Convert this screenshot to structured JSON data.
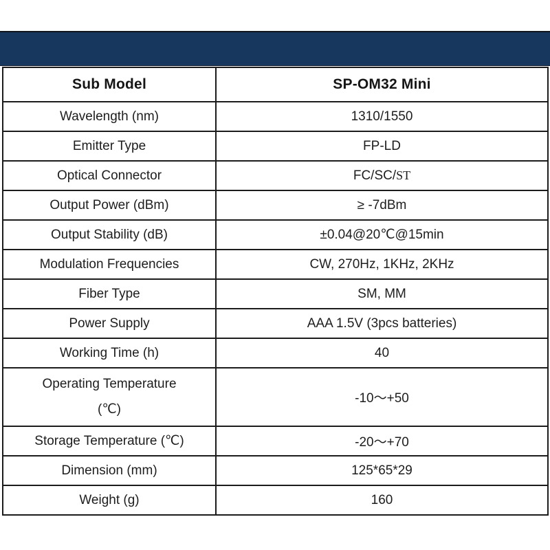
{
  "banner": {
    "color": "#17375e"
  },
  "table": {
    "border_color": "#1b1b1b",
    "header": {
      "label": "Sub Model",
      "value": "SP-OM32 Mini"
    },
    "rows": [
      {
        "label": "Wavelength (nm)",
        "value": "1310/1550"
      },
      {
        "label": "Emitter Type",
        "value": "FP-LD"
      },
      {
        "label": "Optical Connector",
        "value": "FC/SC/",
        "value_serif": "ST"
      },
      {
        "label": "Output Power (dBm)",
        "value": "≥ -7dBm"
      },
      {
        "label": "Output Stability (dB)",
        "value": "±0.04@20℃@15min"
      },
      {
        "label": "Modulation Frequencies",
        "value": "CW, 270Hz, 1KHz, 2KHz"
      },
      {
        "label": "Fiber Type",
        "value": "SM, MM"
      },
      {
        "label": "Power Supply",
        "value": "AAA 1.5V (3pcs batteries)"
      },
      {
        "label": "Working Time (h)",
        "value": "40"
      },
      {
        "label": "Operating Temperature",
        "label_line2": "(℃)",
        "value": "-10～+50",
        "tall": true
      },
      {
        "label": "Storage Temperature (℃)",
        "value": "-20～+70"
      },
      {
        "label": "Dimension (mm)",
        "value": "125*65*29"
      },
      {
        "label": "Weight (g)",
        "value": "160"
      }
    ]
  }
}
